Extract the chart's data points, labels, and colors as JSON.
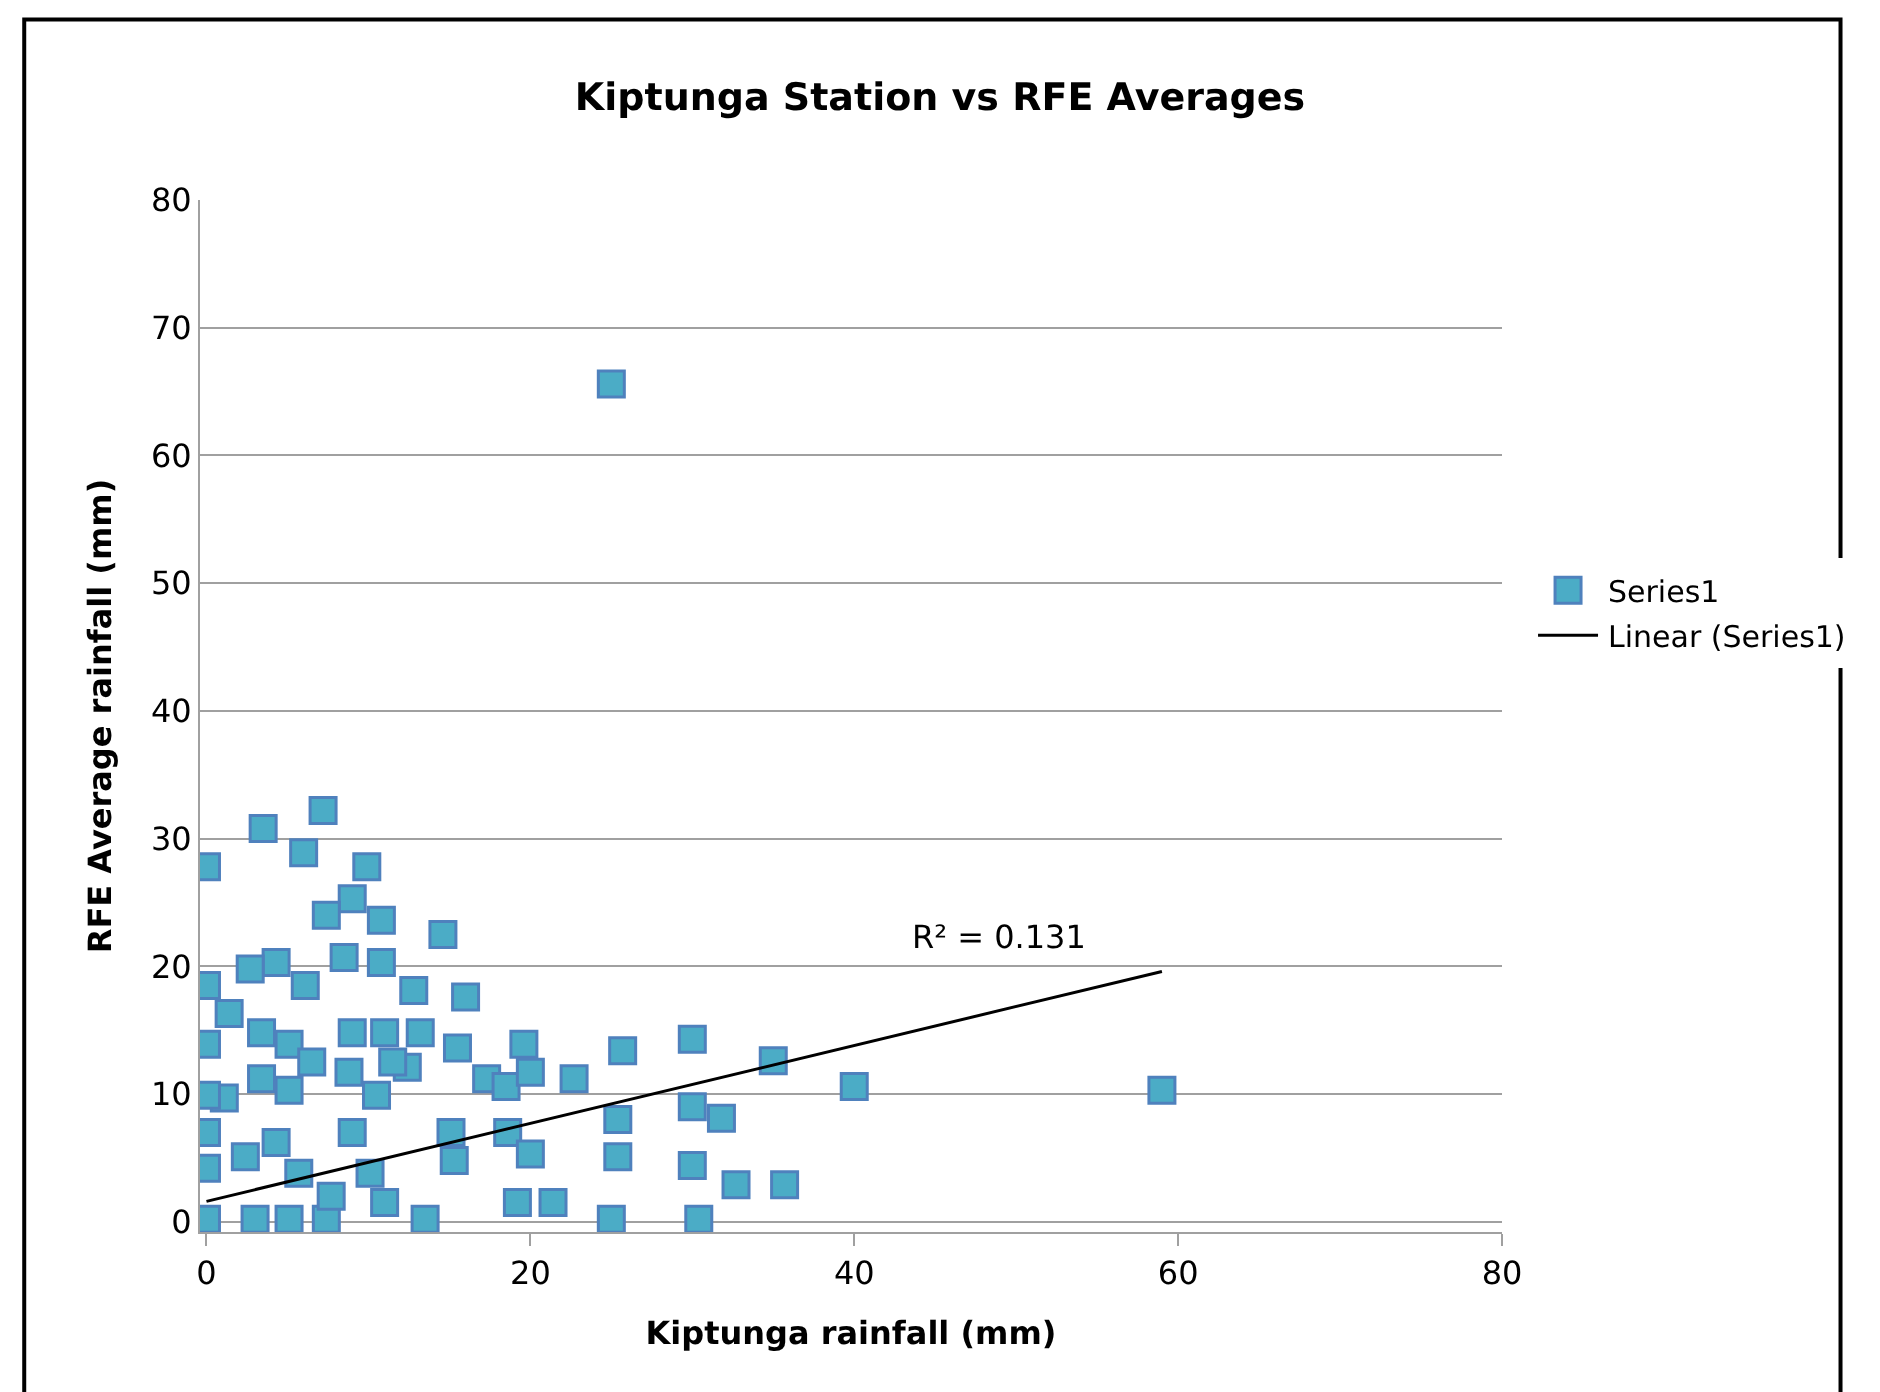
{
  "chart_data": {
    "type": "scatter",
    "title": "Kiptunga Station vs RFE Averages",
    "xlabel": "Kiptunga rainfall (mm)",
    "ylabel": "RFE Average rainfall (mm)",
    "xlim": [
      0,
      80
    ],
    "xticks": [
      0,
      20,
      40,
      60,
      80
    ],
    "ylim": [
      0,
      80
    ],
    "yticks": [
      0,
      10,
      20,
      30,
      40,
      50,
      60,
      70,
      80
    ],
    "grid": "y",
    "legend": "right",
    "series": [
      {
        "name": "Series1",
        "marker": "square",
        "color": "#4bacc6",
        "x": [
          25,
          7.2,
          3.5,
          0,
          6,
          9.9,
          9,
          7.4,
          10.8,
          14.6,
          8.5,
          10.8,
          4.3,
          2.7,
          0,
          12.8,
          16,
          6.1,
          1.4,
          3.4,
          5.1,
          0,
          9,
          11,
          13.2,
          15.5,
          6.5,
          8.8,
          12.4,
          17.3,
          19.6,
          18.5,
          22.7,
          25.7,
          1.1,
          5.1,
          0,
          0,
          0,
          0,
          3,
          5.1,
          7.4,
          9,
          4.3,
          7.7,
          11,
          13.5,
          15.1,
          15.3,
          18.6,
          20,
          19.2,
          21.4,
          25,
          25.4,
          25.4,
          20,
          2.4,
          10.5,
          11.5,
          5.7,
          10.1,
          3.4,
          30,
          35,
          40,
          59,
          30,
          31.8,
          30,
          32.7,
          35.7,
          30.4
        ],
        "values": [
          65.6,
          32.2,
          30.8,
          27.8,
          28.9,
          27.8,
          25.3,
          24,
          23.6,
          22.5,
          20.7,
          20.3,
          20.3,
          19.8,
          18.5,
          18.1,
          17.6,
          18.5,
          16.3,
          14.8,
          13.9,
          13.9,
          14.8,
          14.8,
          14.8,
          13.6,
          12.5,
          11.7,
          12.1,
          11.2,
          13.9,
          10.6,
          11.2,
          13.4,
          9.7,
          10.3,
          9.9,
          7,
          4.2,
          0.2,
          0.2,
          0.2,
          0.2,
          7,
          6.2,
          2,
          1.5,
          0.2,
          7,
          4.8,
          7,
          5.3,
          1.5,
          1.5,
          0.2,
          5.1,
          8,
          11.7,
          5.1,
          9.9,
          12.5,
          3.8,
          3.8,
          11.2,
          14.3,
          12.6,
          10.6,
          10.3,
          9,
          8.1,
          4.4,
          2.9,
          2.9,
          0.2
        ]
      },
      {
        "name": "Linear (Series1)",
        "type": "line",
        "marker": "none",
        "line_style": "solid",
        "color": "#000000",
        "x": [
          0,
          59
        ],
        "values": [
          1.6,
          19.6
        ]
      }
    ],
    "annotations": [
      "R² = 0.131"
    ]
  }
}
